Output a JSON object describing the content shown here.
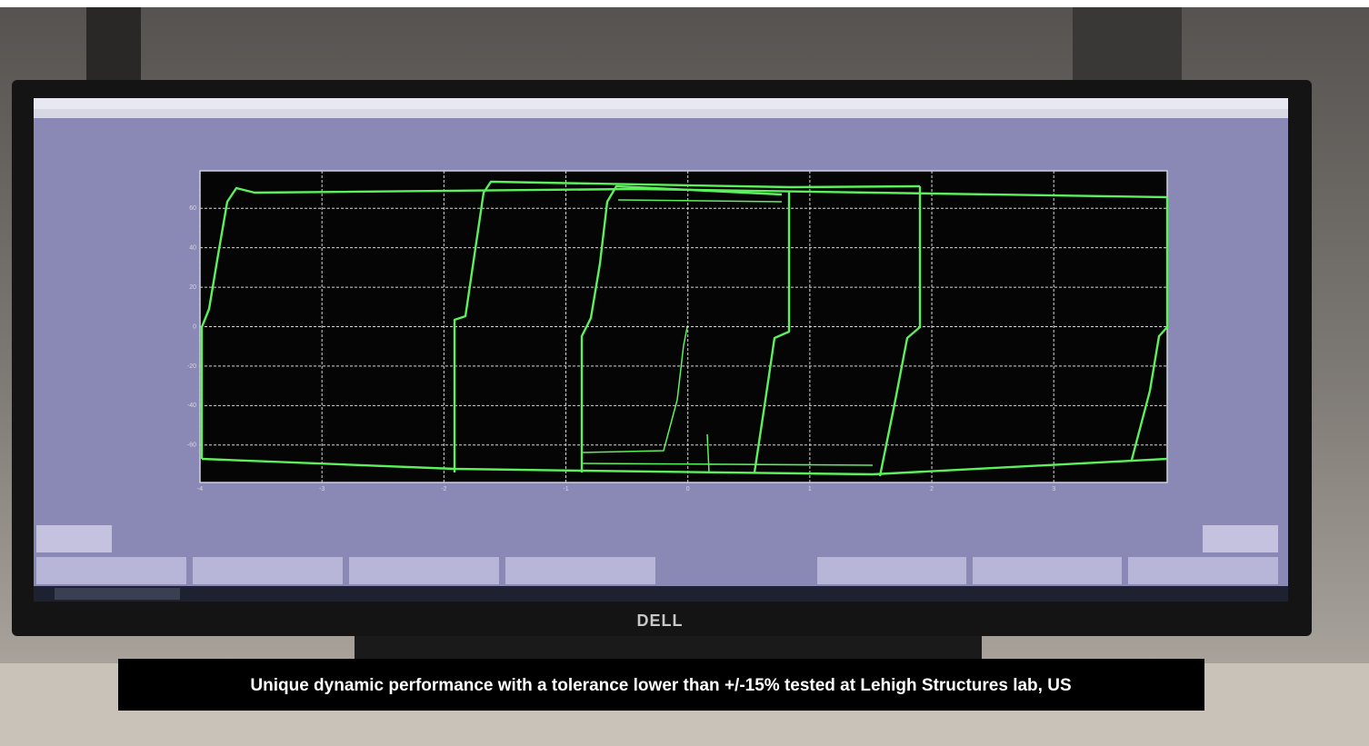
{
  "monitor": {
    "brand": "DELL"
  },
  "screen": {
    "plot": {
      "xlim": [
        -4,
        3.93
      ],
      "ylim": [
        -79,
        79
      ],
      "xticks": [
        -4,
        -3,
        -2,
        -1,
        0,
        1,
        2,
        3
      ],
      "yticks": [
        60,
        40,
        20,
        0,
        -20,
        -40,
        -60
      ]
    }
  },
  "caption": "Unique dynamic performance with a tolerance lower than +/-15% tested at Lehigh Structures lab, US"
}
